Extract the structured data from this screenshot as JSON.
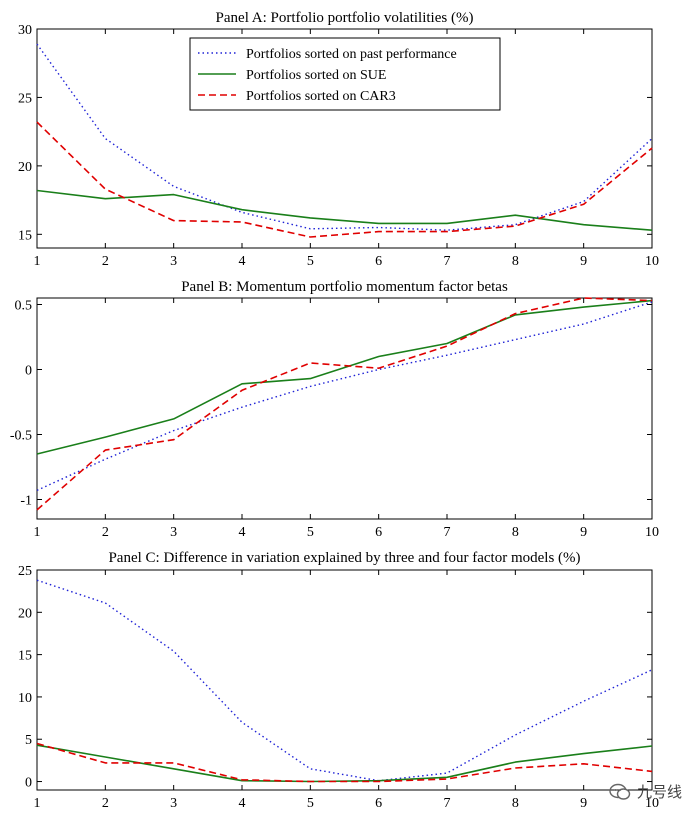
{
  "colors": {
    "past_performance": "#1f22d6",
    "sue": "#1a7f1a",
    "car3": "#e00000"
  },
  "legend": {
    "items": [
      {
        "label": "Portfolios sorted on past performance",
        "key": "past_performance",
        "dash": "dot"
      },
      {
        "label": "Portfolios sorted on SUE",
        "key": "sue",
        "dash": "solid"
      },
      {
        "label": "Portfolios sorted on CAR3",
        "key": "car3",
        "dash": "dash"
      }
    ]
  },
  "watermark": {
    "icon": "wechat-chat-bubble-icon",
    "text": "九号线"
  },
  "chart_data": [
    {
      "type": "line",
      "title": "Panel A: Portfolio portfolio volatilities (%)",
      "x": [
        1,
        2,
        3,
        4,
        5,
        6,
        7,
        8,
        9,
        10
      ],
      "xlim": [
        1,
        10
      ],
      "ylim": [
        14,
        30
      ],
      "xticks": [
        1,
        2,
        3,
        4,
        5,
        6,
        7,
        8,
        9,
        10
      ],
      "yticks": [
        15,
        20,
        25,
        30
      ],
      "grid": false,
      "legend_position": "top-center",
      "series": [
        {
          "name": "Portfolios sorted on past performance",
          "key": "past_performance",
          "values": [
            28.9,
            22.0,
            18.5,
            16.6,
            15.4,
            15.5,
            15.3,
            15.7,
            17.4,
            22.0
          ]
        },
        {
          "name": "Portfolios sorted on SUE",
          "key": "sue",
          "values": [
            18.2,
            17.6,
            17.9,
            16.8,
            16.2,
            15.8,
            15.8,
            16.4,
            15.7,
            15.3
          ]
        },
        {
          "name": "Portfolios sorted on CAR3",
          "key": "car3",
          "values": [
            23.2,
            18.3,
            16.0,
            15.9,
            14.8,
            15.2,
            15.2,
            15.6,
            17.2,
            21.3
          ]
        }
      ]
    },
    {
      "type": "line",
      "title": "Panel B: Momentum portfolio momentum factor betas",
      "x": [
        1,
        2,
        3,
        4,
        5,
        6,
        7,
        8,
        9,
        10
      ],
      "xlim": [
        1,
        10
      ],
      "ylim": [
        -1.15,
        0.55
      ],
      "xticks": [
        1,
        2,
        3,
        4,
        5,
        6,
        7,
        8,
        9,
        10
      ],
      "yticks": [
        -1,
        -0.5,
        0,
        0.5
      ],
      "grid": false,
      "series": [
        {
          "key": "past_performance",
          "values": [
            -0.93,
            -0.69,
            -0.47,
            -0.29,
            -0.13,
            0.0,
            0.11,
            0.23,
            0.35,
            0.52
          ]
        },
        {
          "key": "sue",
          "values": [
            -0.65,
            -0.52,
            -0.38,
            -0.11,
            -0.07,
            0.1,
            0.2,
            0.42,
            0.48,
            0.53
          ]
        },
        {
          "key": "car3",
          "values": [
            -1.08,
            -0.62,
            -0.54,
            -0.16,
            0.05,
            0.01,
            0.18,
            0.43,
            0.55,
            0.53
          ]
        }
      ]
    },
    {
      "type": "line",
      "title": "Panel C: Difference in variation explained by three and four factor models (%)",
      "x": [
        1,
        2,
        3,
        4,
        5,
        6,
        7,
        8,
        9,
        10
      ],
      "xlim": [
        1,
        10
      ],
      "ylim": [
        -1,
        25
      ],
      "xticks": [
        1,
        2,
        3,
        4,
        5,
        6,
        7,
        8,
        9,
        10
      ],
      "yticks": [
        0,
        5,
        10,
        15,
        20,
        25
      ],
      "grid": false,
      "series": [
        {
          "key": "past_performance",
          "values": [
            23.8,
            21.1,
            15.4,
            7.0,
            1.5,
            0.1,
            1.0,
            5.5,
            9.5,
            13.2
          ]
        },
        {
          "key": "sue",
          "values": [
            4.3,
            2.9,
            1.5,
            0.1,
            0.0,
            0.1,
            0.5,
            2.3,
            3.3,
            4.2
          ]
        },
        {
          "key": "car3",
          "values": [
            4.5,
            2.2,
            2.2,
            0.2,
            0.0,
            0.0,
            0.3,
            1.6,
            2.1,
            1.2
          ]
        }
      ]
    }
  ]
}
